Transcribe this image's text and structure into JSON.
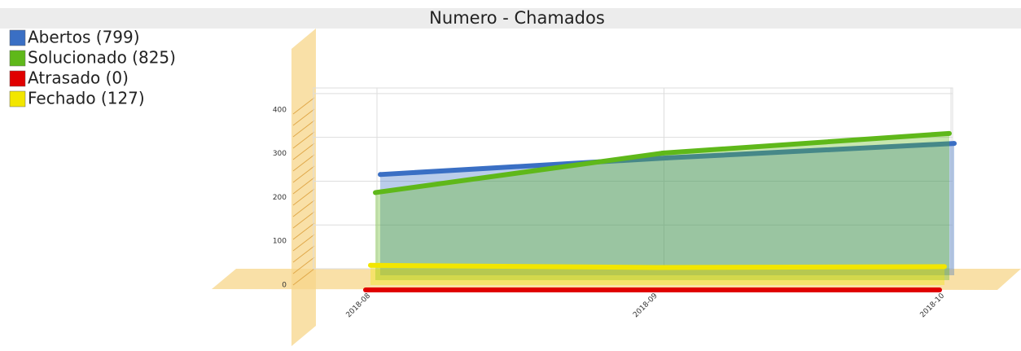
{
  "chart_data": {
    "type": "area",
    "title": "Numero - Chamados",
    "categories": [
      "2018-08",
      "2018-09",
      "2018-10"
    ],
    "series": [
      {
        "name": "Abertos (799)",
        "color": "#3a6fc4",
        "values": [
          230,
          268,
          301
        ]
      },
      {
        "name": "Solucionado (825)",
        "color": "#5fb81a",
        "values": [
          200,
          290,
          335
        ]
      },
      {
        "name": "Atrasado (0)",
        "color": "#e00000",
        "values": [
          0,
          0,
          0
        ]
      },
      {
        "name": "Fechado (127)",
        "color": "#f2e600",
        "values": [
          45,
          40,
          42
        ]
      }
    ],
    "ylim": [
      0,
      450
    ],
    "yticks": [
      0,
      100,
      200,
      300,
      400
    ],
    "grid": true,
    "legend": "top-left"
  }
}
